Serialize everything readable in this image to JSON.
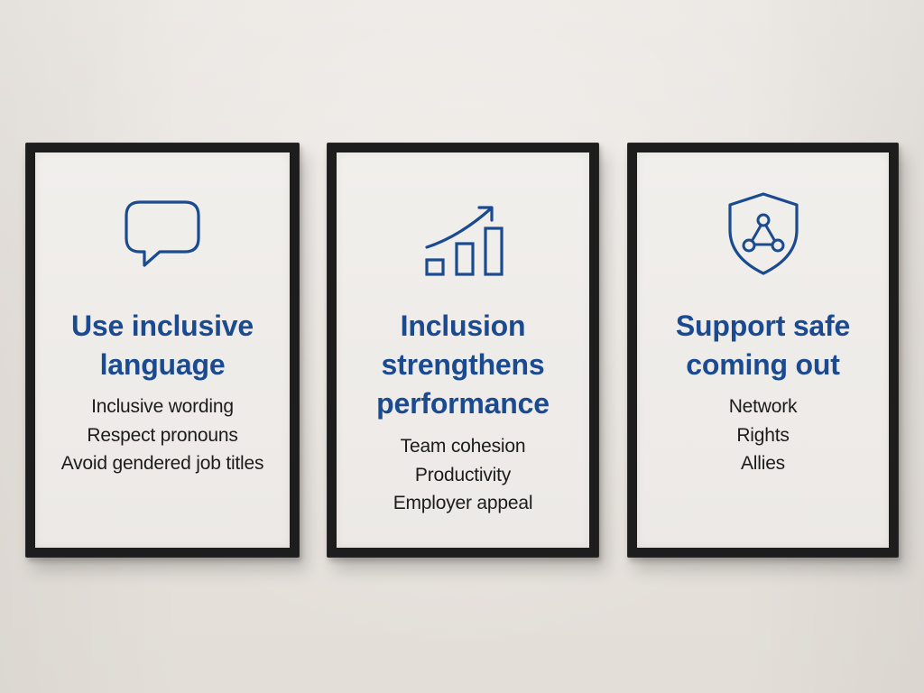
{
  "posters": [
    {
      "icon": "speech-bubble-icon",
      "title_lines": [
        "Use inclusive",
        "language"
      ],
      "items": [
        "Inclusive wording",
        "Respect pronouns",
        "Avoid gendered job titles"
      ]
    },
    {
      "icon": "growth-bar-chart-icon",
      "title_lines": [
        "Inclusion",
        "strengthens",
        "performance"
      ],
      "items": [
        "Team cohesion",
        "Productivity",
        "Employer appeal"
      ]
    },
    {
      "icon": "shield-network-icon",
      "title_lines": [
        "Support safe",
        "coming out"
      ],
      "items": [
        "Network",
        "Rights",
        "Allies"
      ]
    }
  ],
  "colors": {
    "accent": "#1a4a8f",
    "frame": "#1d1d1d",
    "poster": "#efece9",
    "text": "#1c1c1c",
    "wall": "#e8e3de"
  }
}
